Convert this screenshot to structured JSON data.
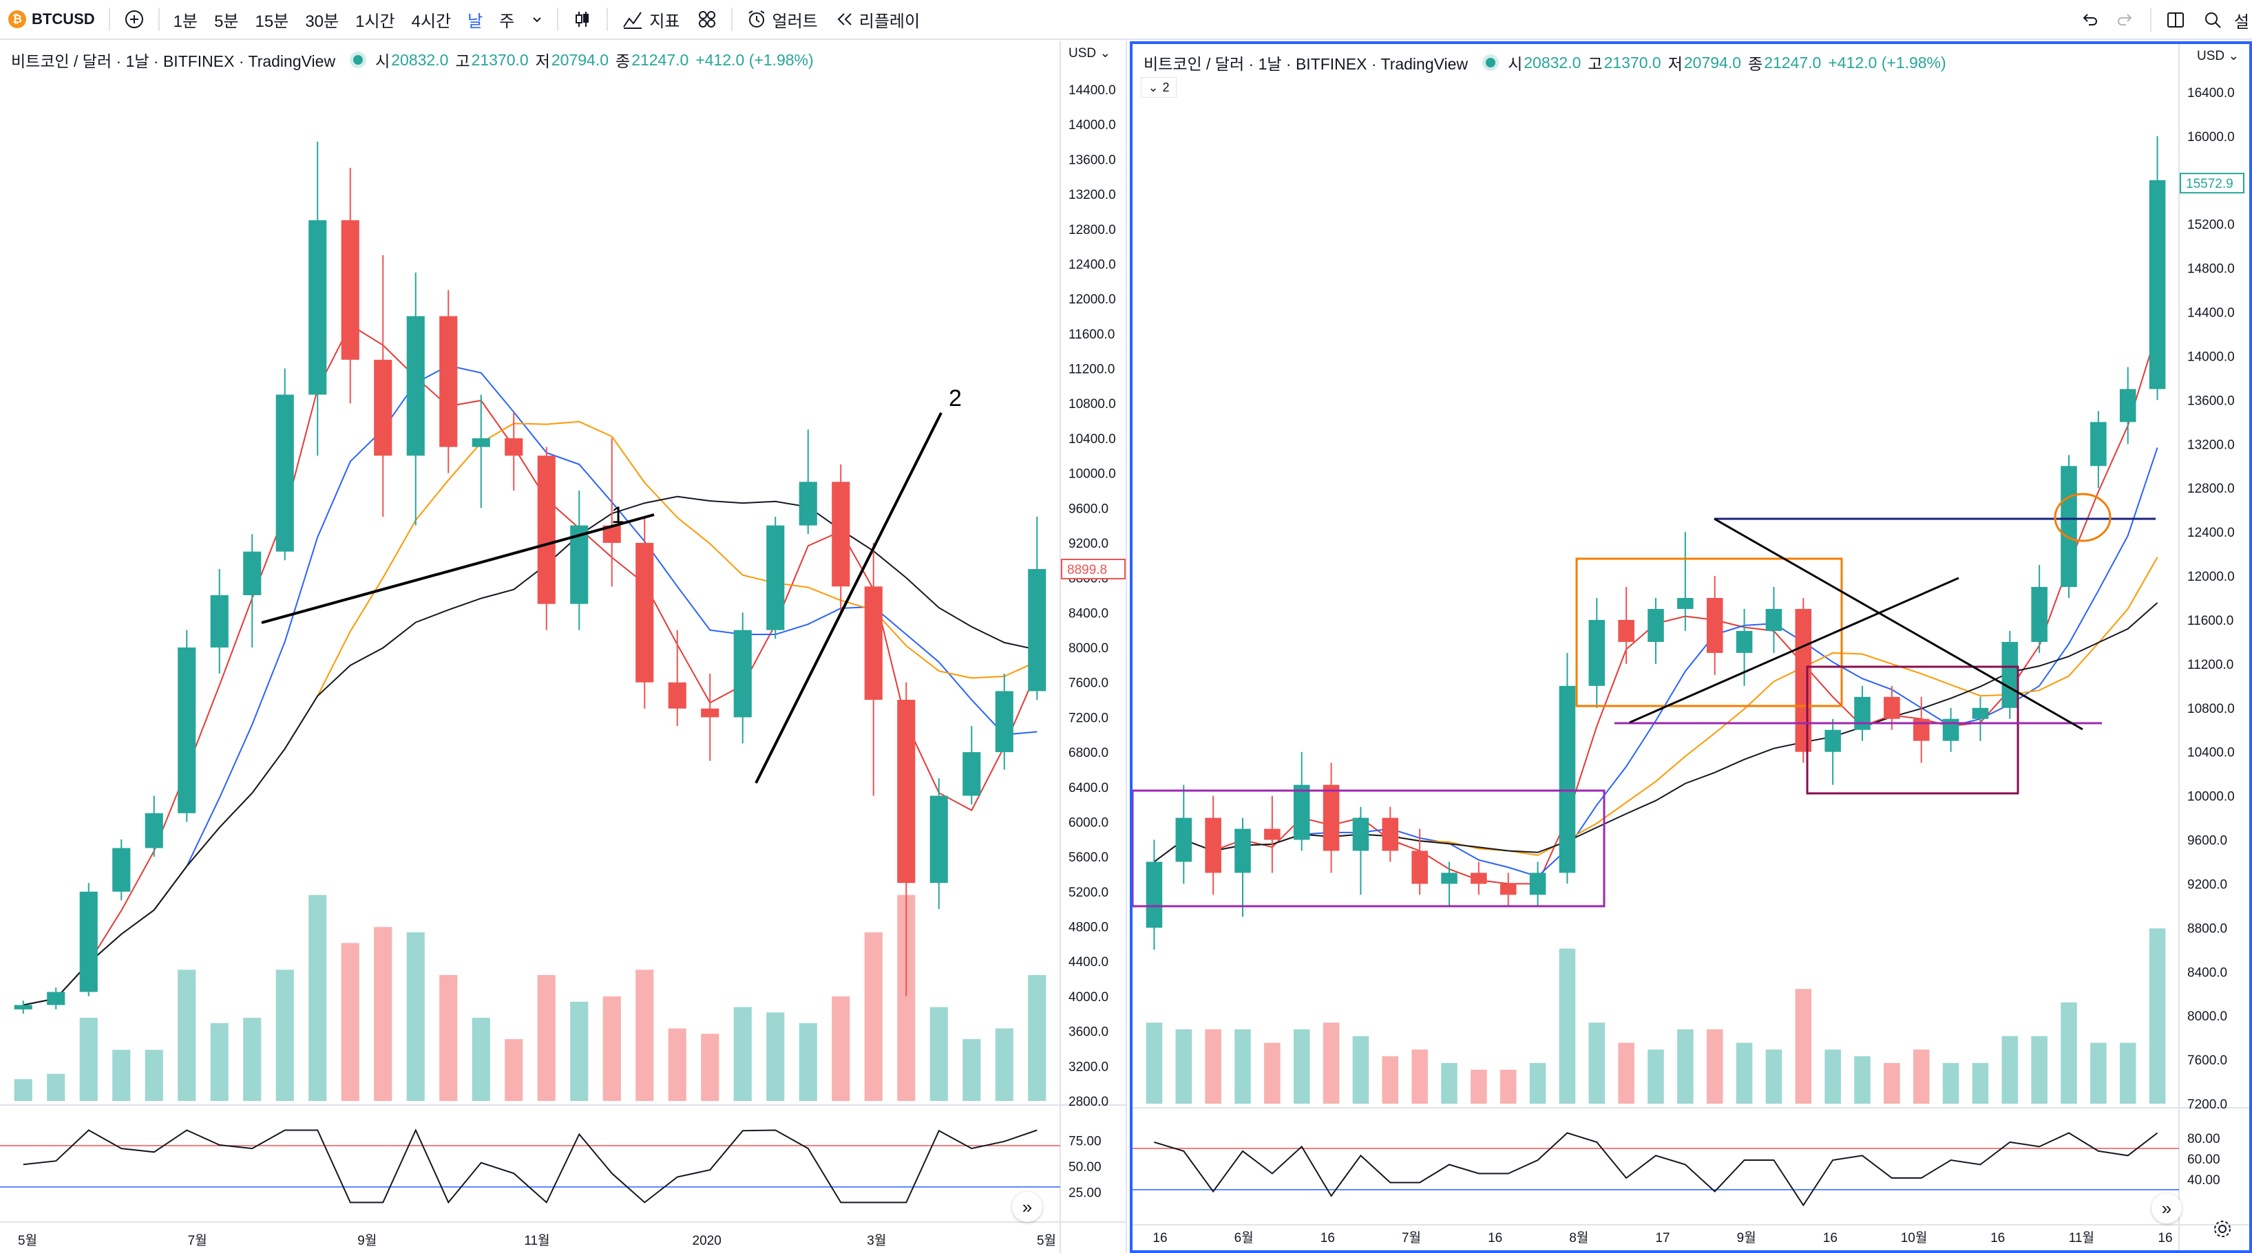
{
  "toolbar": {
    "symbol": "BTCUSD",
    "btc_glyph": "₿",
    "add_symbol_icon": "plus-circle-icon",
    "intervals": [
      "1분",
      "5분",
      "15분",
      "30분",
      "1시간",
      "4시간",
      "날",
      "주"
    ],
    "active_interval": "날",
    "interval_dropdown_icon": "chevron-down-icon",
    "candles_icon": "candlestick-icon",
    "indicators_label": "지표",
    "templates_icon": "templates-grid-icon",
    "alert_label": "얼러트",
    "replay_label": "리플레이",
    "undo_icon": "undo-icon",
    "redo_icon": "redo-icon",
    "layout_icon": "layout-split-icon",
    "search_icon": "search-icon",
    "right_cut_label": "설"
  },
  "panes": {
    "left": {
      "title": "비트코인 / 달러 · 1날 · BITFINEX · TradingView",
      "ohlc": {
        "o_label": "시",
        "o": "20832.0",
        "h_label": "고",
        "h": "21370.0",
        "l_label": "저",
        "l": "20794.0",
        "c_label": "종",
        "c": "21247.0",
        "change": "+412.0 (+1.98%)"
      },
      "currency": "USD",
      "price_ticks": [
        "14400.0",
        "14000.0",
        "13600.0",
        "13200.0",
        "12800.0",
        "12400.0",
        "12000.0",
        "11600.0",
        "11200.0",
        "10800.0",
        "10400.0",
        "10000.0",
        "9600.0",
        "9200.0",
        "8800.0",
        "8400.0",
        "8000.0",
        "7600.0",
        "7200.0",
        "6800.0",
        "6400.0",
        "6000.0",
        "5600.0",
        "5200.0",
        "4800.0",
        "4400.0",
        "4000.0",
        "3600.0",
        "3200.0",
        "2800.0"
      ],
      "last_price": "8899.8",
      "rsi_ticks": [
        "75.00",
        "50.00",
        "25.00"
      ],
      "time_ticks": [
        "5월",
        "7월",
        "9월",
        "11월",
        "2020",
        "3월",
        "5월"
      ],
      "annotations": [
        "1",
        "2"
      ],
      "chart_data": {
        "type": "candlestick",
        "symbol": "BTCUSD",
        "exchange": "BITFINEX",
        "interval": "1D",
        "ylim": [
          2800,
          14400
        ],
        "series": [
          {
            "name": "BTCUSD",
            "values": [
              [
                3850,
                3950,
                3800,
                3900
              ],
              [
                3900,
                4100,
                3850,
                4050
              ],
              [
                4050,
                5300,
                4000,
                5200
              ],
              [
                5200,
                5800,
                5100,
                5700
              ],
              [
                5700,
                6300,
                5600,
                6100
              ],
              [
                6100,
                8200,
                6000,
                8000
              ],
              [
                8000,
                8900,
                7700,
                8600
              ],
              [
                8600,
                9300,
                8000,
                9100
              ],
              [
                9100,
                11200,
                9000,
                10900
              ],
              [
                10900,
                13800,
                10200,
                12900
              ],
              [
                12900,
                13500,
                10800,
                11300
              ],
              [
                11300,
                12500,
                9500,
                10200
              ],
              [
                10200,
                12300,
                9400,
                11800
              ],
              [
                11800,
                12100,
                10000,
                10300
              ],
              [
                10300,
                10900,
                9600,
                10400
              ],
              [
                10400,
                10700,
                9800,
                10200
              ],
              [
                10200,
                10300,
                8200,
                8500
              ],
              [
                8500,
                9800,
                8200,
                9400
              ],
              [
                9400,
                10400,
                8700,
                9200
              ],
              [
                9200,
                9500,
                7300,
                7600
              ],
              [
                7600,
                8200,
                7100,
                7300
              ],
              [
                7300,
                7700,
                6700,
                7200
              ],
              [
                7200,
                8400,
                6900,
                8200
              ],
              [
                8200,
                9500,
                8100,
                9400
              ],
              [
                9400,
                10500,
                9300,
                9900
              ],
              [
                9900,
                10100,
                8400,
                8700
              ],
              [
                8700,
                9200,
                6300,
                7400
              ],
              [
                7400,
                7600,
                4000,
                5300
              ],
              [
                5300,
                6500,
                5000,
                6300
              ],
              [
                6300,
                7100,
                6200,
                6800
              ],
              [
                6800,
                7700,
                6600,
                7500
              ],
              [
                7500,
                9500,
                7400,
                8900
              ]
            ]
          }
        ],
        "overlays": [
          "MA red",
          "MA blue",
          "MA orange",
          "MA black"
        ],
        "trendlines": [
          {
            "label": "1",
            "from": [
              "2019-07",
              8600
            ],
            "to": [
              "2019-11",
              9800
            ]
          },
          {
            "label": "2",
            "from": [
              "2020-01",
              6900
            ],
            "to": [
              "2020-02",
              11200
            ]
          }
        ],
        "rsi": {
          "upper": 70,
          "lower": 30
        }
      }
    },
    "right": {
      "title": "비트코인 / 달러 · 1날 · BITFINEX · TradingView",
      "ohlc": {
        "o_label": "시",
        "o": "20832.0",
        "h_label": "고",
        "h": "21370.0",
        "l_label": "저",
        "l": "20794.0",
        "c_label": "종",
        "c": "21247.0",
        "change": "+412.0 (+1.98%)"
      },
      "indicator_toggle": "2",
      "currency": "USD",
      "price_ticks": [
        "16400.0",
        "16000.0",
        "15200.0",
        "14800.0",
        "14400.0",
        "14000.0",
        "13600.0",
        "13200.0",
        "12800.0",
        "12400.0",
        "12000.0",
        "11600.0",
        "11200.0",
        "10800.0",
        "10400.0",
        "10000.0",
        "9600.0",
        "9200.0",
        "8800.0",
        "8400.0",
        "8000.0",
        "7600.0",
        "7200.0"
      ],
      "last_price": "15572.9",
      "rsi_ticks": [
        "80.00",
        "60.00",
        "40.00"
      ],
      "time_ticks": [
        "16",
        "6월",
        "16",
        "7월",
        "16",
        "8월",
        "17",
        "9월",
        "16",
        "10월",
        "16",
        "11월",
        "16"
      ],
      "chart_data": {
        "type": "candlestick",
        "symbol": "BTCUSD",
        "exchange": "BITFINEX",
        "interval": "1D",
        "ylim": [
          7200,
          16400
        ],
        "series": [
          {
            "name": "BTCUSD",
            "values": [
              [
                8800,
                9600,
                8600,
                9400
              ],
              [
                9400,
                10100,
                9200,
                9800
              ],
              [
                9800,
                10000,
                9100,
                9300
              ],
              [
                9300,
                9800,
                8900,
                9700
              ],
              [
                9700,
                10000,
                9300,
                9600
              ],
              [
                9600,
                10400,
                9500,
                10100
              ],
              [
                10100,
                10300,
                9300,
                9500
              ],
              [
                9500,
                9900,
                9100,
                9800
              ],
              [
                9800,
                9900,
                9400,
                9500
              ],
              [
                9500,
                9700,
                9100,
                9200
              ],
              [
                9200,
                9400,
                9000,
                9300
              ],
              [
                9300,
                9400,
                9100,
                9200
              ],
              [
                9200,
                9300,
                9000,
                9100
              ],
              [
                9100,
                9400,
                9000,
                9300
              ],
              [
                9300,
                11300,
                9200,
                11000
              ],
              [
                11000,
                11800,
                10800,
                11600
              ],
              [
                11600,
                11900,
                11200,
                11400
              ],
              [
                11400,
                11800,
                11200,
                11700
              ],
              [
                11700,
                12400,
                11500,
                11800
              ],
              [
                11800,
                12000,
                11100,
                11300
              ],
              [
                11300,
                11700,
                11000,
                11500
              ],
              [
                11500,
                11900,
                11300,
                11700
              ],
              [
                11700,
                11800,
                10300,
                10400
              ],
              [
                10400,
                10700,
                10100,
                10600
              ],
              [
                10600,
                11000,
                10500,
                10900
              ],
              [
                10900,
                11000,
                10600,
                10700
              ],
              [
                10700,
                10900,
                10300,
                10500
              ],
              [
                10500,
                10800,
                10400,
                10700
              ],
              [
                10700,
                10900,
                10500,
                10800
              ],
              [
                10800,
                11500,
                10700,
                11400
              ],
              [
                11400,
                12100,
                11300,
                11900
              ],
              [
                11900,
                13100,
                11800,
                13000
              ],
              [
                13000,
                13500,
                12800,
                13400
              ],
              [
                13400,
                13900,
                13200,
                13700
              ],
              [
                13700,
                16000,
                13600,
                15600
              ]
            ]
          }
        ],
        "overlays": [
          "MA red",
          "MA blue",
          "MA orange",
          "MA black"
        ],
        "boxes": [
          "purple range",
          "orange range",
          "maroon range",
          "blue breakout line",
          "orange circle"
        ],
        "rsi": {
          "upper": 70,
          "lower": 30
        }
      }
    }
  }
}
